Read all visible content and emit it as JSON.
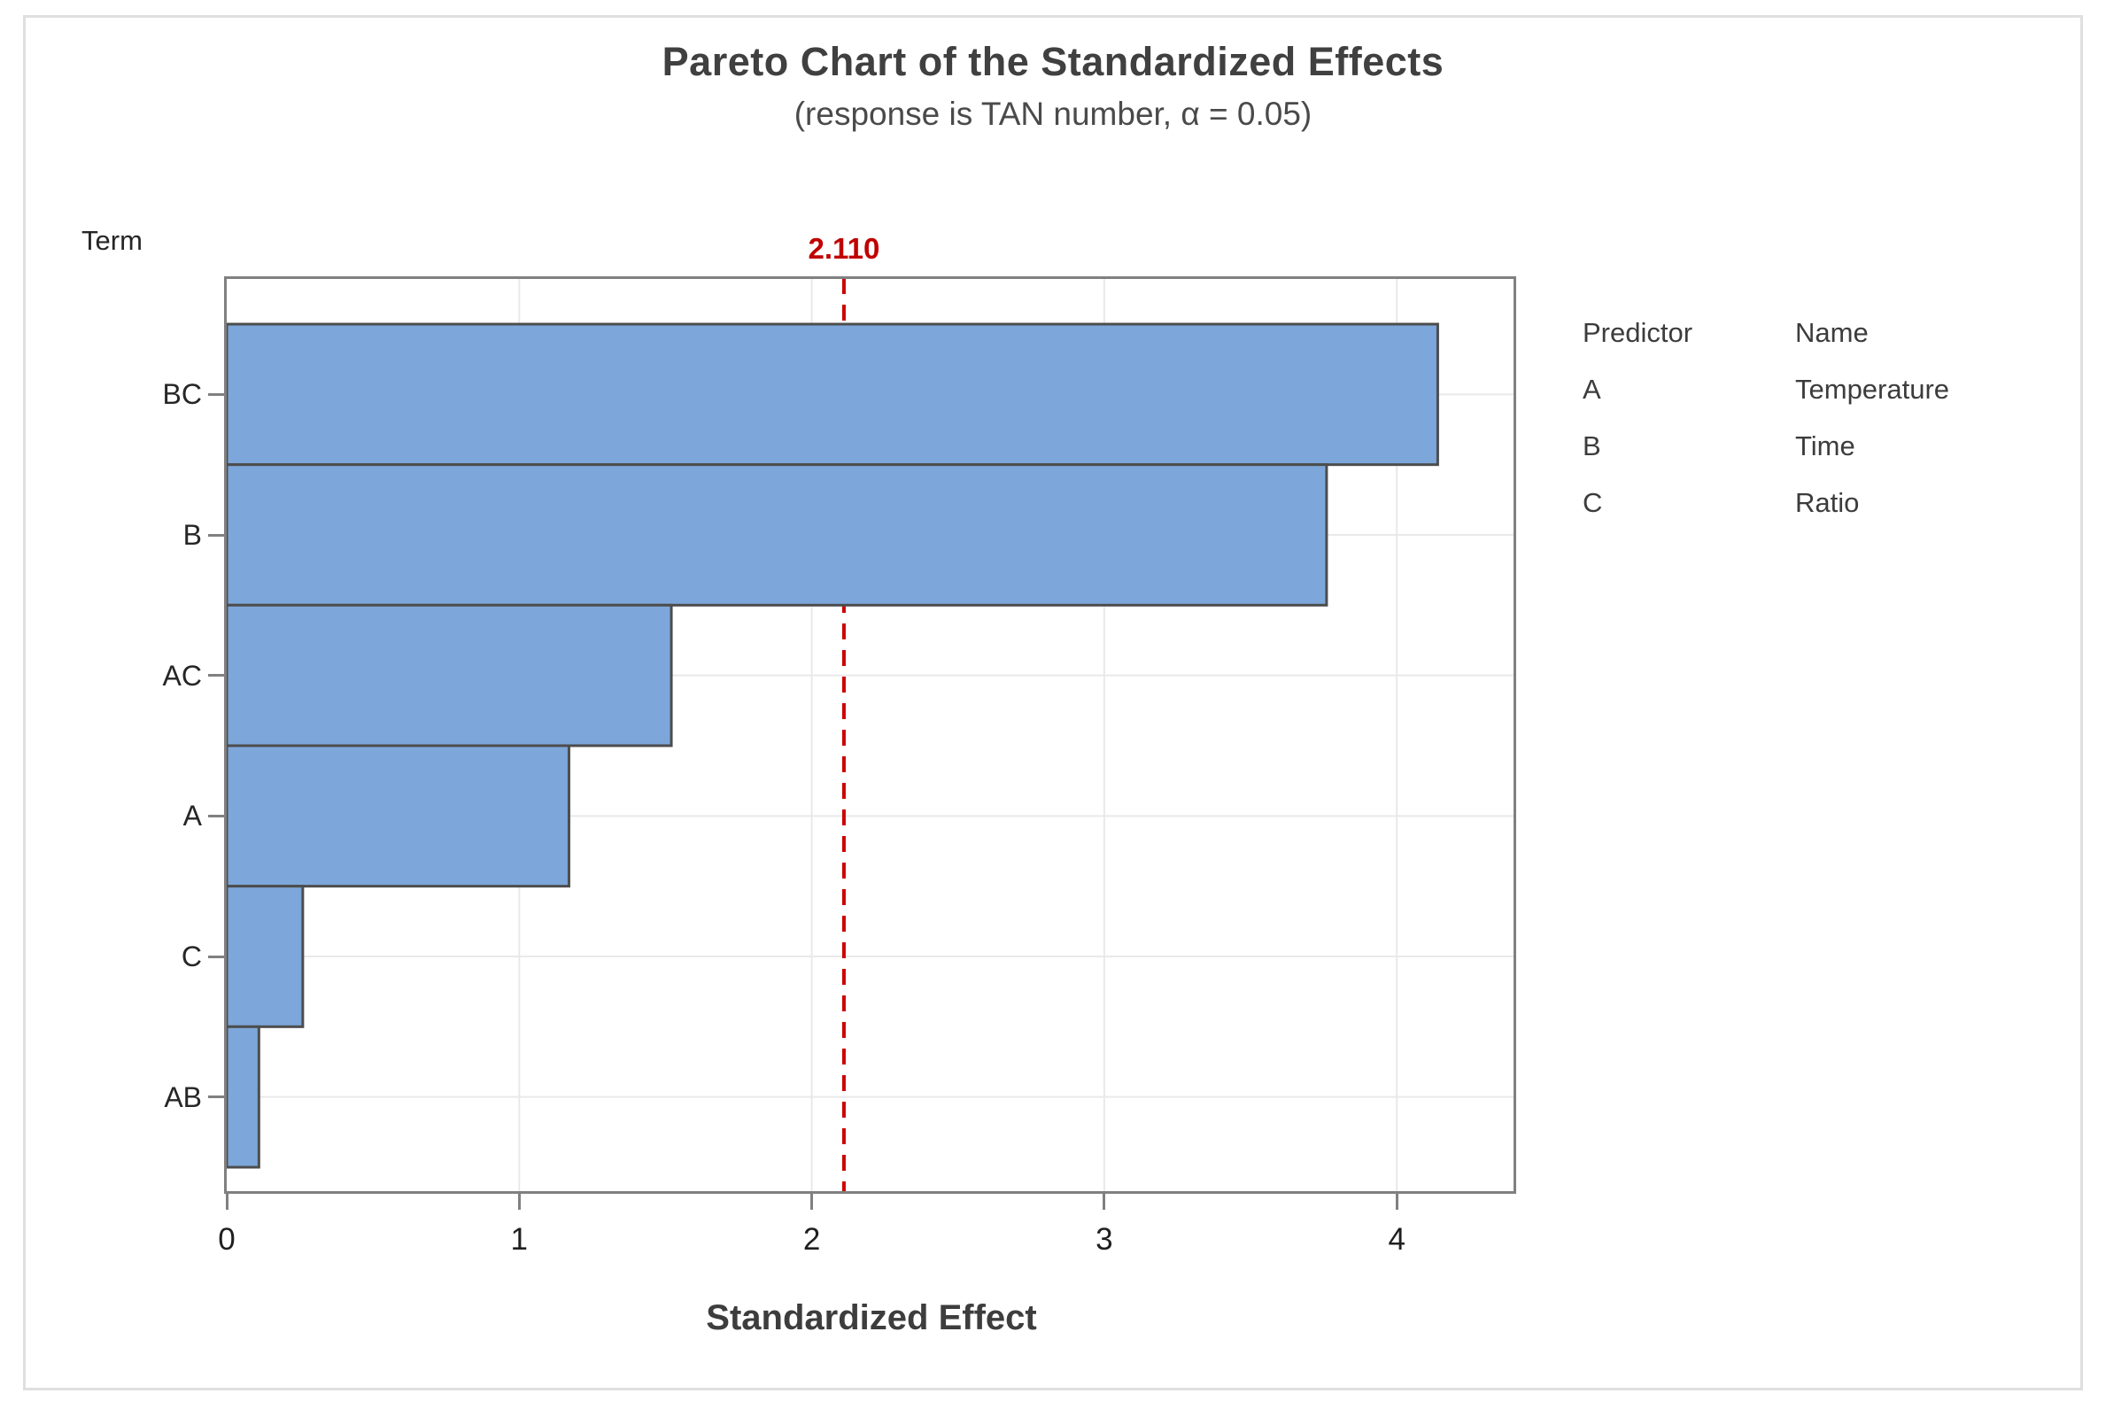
{
  "figure": {
    "title": "Pareto Chart of the Standardized Effects",
    "subtitle": "(response is TAN number, α = 0.05)"
  },
  "chart_data": {
    "type": "bar",
    "orientation": "horizontal",
    "title": "Pareto Chart of the Standardized Effects",
    "subtitle": "(response is TAN number, α = 0.05)",
    "ylabel": "Term",
    "xlabel": "Standardized Effect",
    "categories": [
      "BC",
      "B",
      "AC",
      "A",
      "C",
      "AB"
    ],
    "values": [
      4.14,
      3.76,
      1.52,
      1.17,
      0.26,
      0.11
    ],
    "x_ticks": [
      0,
      1,
      2,
      3,
      4
    ],
    "xlim": [
      0,
      4.39
    ],
    "grid": true,
    "reference_line": {
      "value": 2.11,
      "label": "2.110"
    }
  },
  "legend": {
    "headers": [
      "Predictor",
      "Name"
    ],
    "rows": [
      [
        "A",
        "Temperature"
      ],
      [
        "B",
        "Time"
      ],
      [
        "C",
        "Ratio"
      ]
    ]
  },
  "colors": {
    "bar_fill": "#7da7da",
    "bar_border": "#4d4d4d",
    "plot_border": "#808080",
    "gridline": "#e9e9e9",
    "tick_mark": "#808080",
    "reference_line": "#cc0000",
    "reference_label": "#c00000",
    "title_text": "#404040",
    "figure_border": "#dfdfdf"
  }
}
